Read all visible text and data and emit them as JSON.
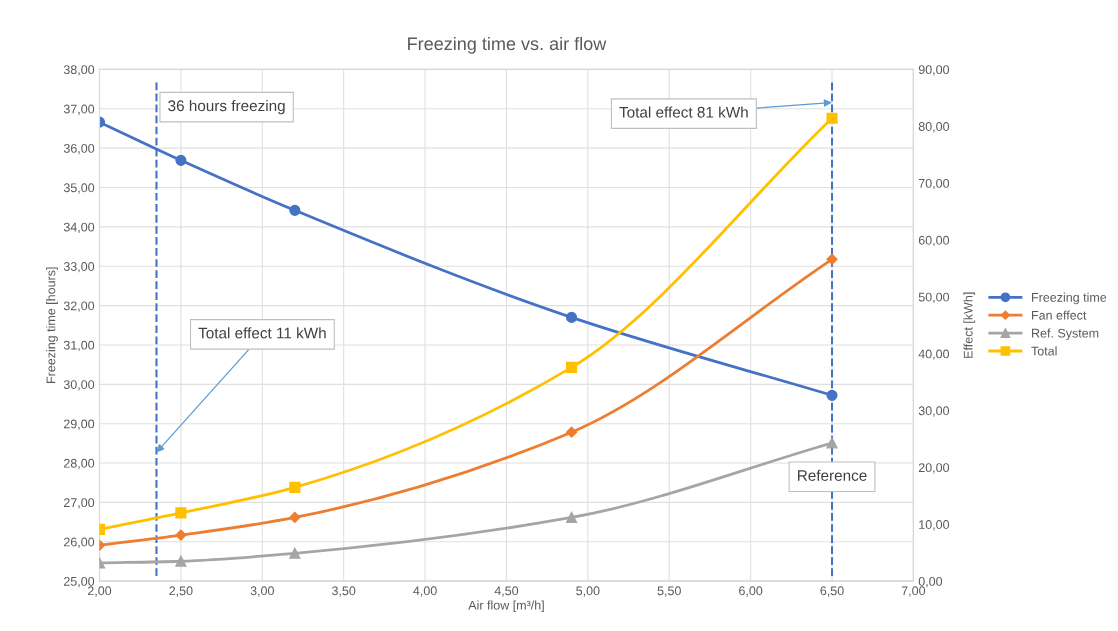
{
  "chart_data": {
    "type": "line",
    "title": "Freezing time vs. air flow",
    "xlabel": "Air flow [m³/h]",
    "ylabel": "Freezing time [hours]",
    "y2label": "Effect [kWh]",
    "x": [
      2.0,
      2.5,
      3.2,
      4.9,
      6.5
    ],
    "series": [
      {
        "name": "Freezing time",
        "color": "#4472c4",
        "marker": "circle",
        "values": [
          36.66,
          35.69,
          34.42,
          31.7,
          29.72
        ]
      },
      {
        "name": "Fan effect",
        "color": "#ed7d31",
        "marker": "diamond",
        "axis": "y2",
        "values": [
          6.3,
          8.1,
          11.2,
          26.2,
          56.6
        ]
      },
      {
        "name": "Ref. System",
        "color": "#a5a5a5",
        "marker": "triangle",
        "axis": "y2",
        "values": [
          3.2,
          3.5,
          4.9,
          11.2,
          24.3
        ]
      },
      {
        "name": "Total",
        "color": "#ffc000",
        "marker": "square",
        "axis": "y2",
        "values": [
          9.1,
          12.0,
          16.5,
          37.6,
          81.4
        ]
      }
    ],
    "xlim": [
      2,
      7
    ],
    "xticks": [
      {
        "value": 2,
        "label": "2,00"
      },
      {
        "value": 2.5,
        "label": "2,50"
      },
      {
        "value": 3,
        "label": "3,00"
      },
      {
        "value": 3.5,
        "label": "3,50"
      },
      {
        "value": 4,
        "label": "4,00"
      },
      {
        "value": 4.5,
        "label": "4,50"
      },
      {
        "value": 5,
        "label": "5,00"
      },
      {
        "value": 5.5,
        "label": "5,50"
      },
      {
        "value": 6,
        "label": "6,00"
      },
      {
        "value": 6.5,
        "label": "6,50"
      },
      {
        "value": 7,
        "label": "7,00"
      }
    ],
    "ylim": [
      25,
      38
    ],
    "yticks": [
      {
        "value": 25,
        "label": "25,00"
      },
      {
        "value": 26,
        "label": "26,00"
      },
      {
        "value": 27,
        "label": "27,00"
      },
      {
        "value": 28,
        "label": "28,00"
      },
      {
        "value": 29,
        "label": "29,00"
      },
      {
        "value": 30,
        "label": "30,00"
      },
      {
        "value": 31,
        "label": "31,00"
      },
      {
        "value": 32,
        "label": "32,00"
      },
      {
        "value": 33,
        "label": "33,00"
      },
      {
        "value": 34,
        "label": "34,00"
      },
      {
        "value": 35,
        "label": "35,00"
      },
      {
        "value": 36,
        "label": "36,00"
      },
      {
        "value": 37,
        "label": "37,00"
      },
      {
        "value": 38,
        "label": "38,00"
      }
    ],
    "y2lim": [
      0,
      90
    ],
    "y2ticks": [
      {
        "value": 0,
        "label": "0,00"
      },
      {
        "value": 10,
        "label": "10,00"
      },
      {
        "value": 20,
        "label": "20,00"
      },
      {
        "value": 30,
        "label": "30,00"
      },
      {
        "value": 40,
        "label": "40,00"
      },
      {
        "value": 50,
        "label": "50,00"
      },
      {
        "value": 60,
        "label": "60,00"
      },
      {
        "value": 70,
        "label": "70,00"
      },
      {
        "value": 80,
        "label": "80,00"
      },
      {
        "value": 90,
        "label": "90,00"
      }
    ],
    "ref_lines": [
      {
        "axis": "x",
        "value": 2.35,
        "label": "36 hours freezing",
        "color": "#4472c4",
        "line_style": "dashed"
      },
      {
        "axis": "x",
        "value": 6.5,
        "label": "Reference",
        "color": "#4472c4",
        "line_style": "dashed"
      }
    ],
    "annotations": [
      {
        "text": "Total effect 11 kWh",
        "x": 2.35,
        "y": 28.27
      },
      {
        "text": "Total effect 81 kWh",
        "x": 6.5,
        "y": 37.16
      }
    ],
    "grid": true,
    "legend": "right",
    "line_style": "solid"
  }
}
